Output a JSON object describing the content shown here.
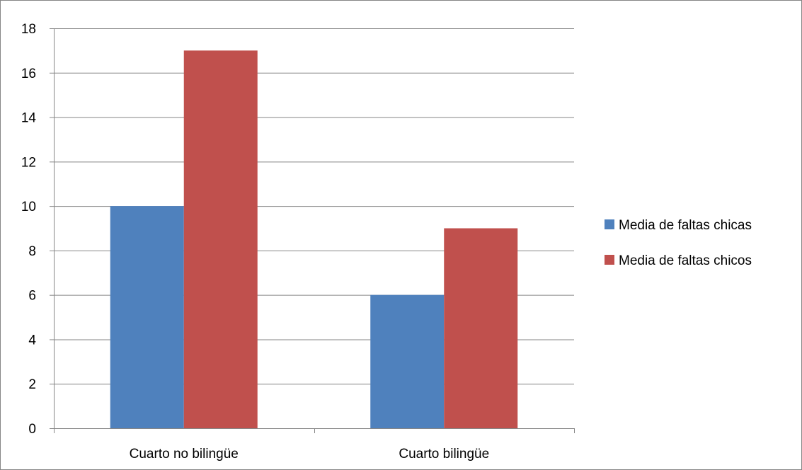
{
  "chart_data": {
    "type": "bar",
    "categories": [
      "Cuarto no bilingüe",
      "Cuarto bilingüe"
    ],
    "series": [
      {
        "name": "Media de faltas chicas",
        "values": [
          10,
          6
        ],
        "color": "#4f81bd"
      },
      {
        "name": "Media de faltas chicos",
        "values": [
          17,
          9
        ],
        "color": "#c0504d"
      }
    ],
    "title": "",
    "xlabel": "",
    "ylabel": "",
    "ylim": [
      0,
      18
    ],
    "yticks": [
      0,
      2,
      4,
      6,
      8,
      10,
      12,
      14,
      16,
      18
    ],
    "grid": true,
    "legend_position": "right"
  }
}
